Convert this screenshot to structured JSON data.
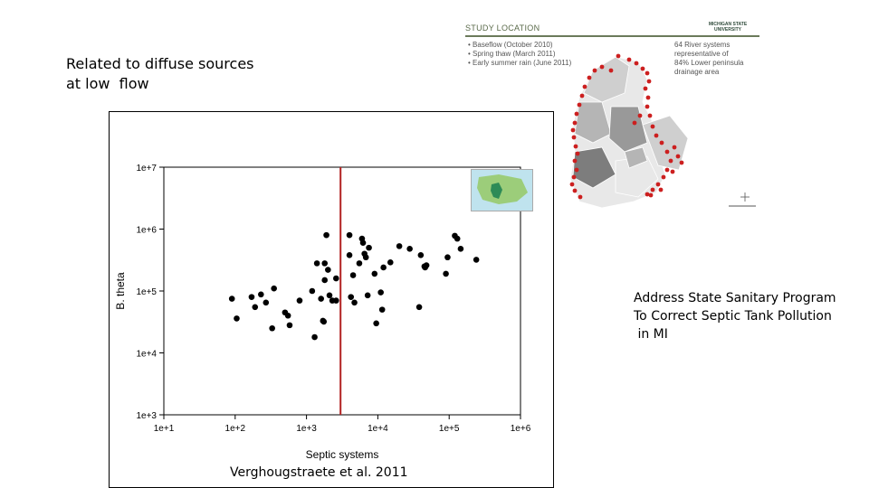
{
  "left_note": {
    "line1": "Related to diffuse sources",
    "line2": "at low  flow"
  },
  "right_note": {
    "line1": "Address State Sanitary Program",
    "line2": "To Correct Septic Tank Pollution",
    "line3": " in MI"
  },
  "citation": "Verghougstraete et al. 2011",
  "study_map": {
    "header": "STUDY LOCATION",
    "brand_line1": "MICHIGAN STATE",
    "brand_line2": "UNIVERSITY",
    "bullets": [
      "Baseflow (October 2010)",
      "Spring thaw (March 2011)",
      "Early summer rain (June 2011)"
    ],
    "side_line1": "64 River systems",
    "side_line2": "representative of",
    "side_line3": "84% Lower peninsula",
    "side_line4": "drainage area",
    "site_color": "#cc1f1f",
    "watershed_colors": [
      "#e8e8e8",
      "#cfcfcf",
      "#b5b5b5",
      "#999999",
      "#7d7d7d"
    ],
    "inset_colors": {
      "water": "#bfe3ee",
      "land": "#9ccd7a",
      "michigan": "#2e8b57"
    }
  },
  "chart_data": {
    "type": "scatter",
    "xlabel": "Septic systems",
    "ylabel": "B. theta",
    "x_scale": "log",
    "y_scale": "log",
    "xlim": [
      10,
      1000000
    ],
    "ylim": [
      1000,
      10000000
    ],
    "x_ticks": [
      "1e+1",
      "1e+2",
      "1e+3",
      "1e+4",
      "1e+5",
      "1e+6"
    ],
    "y_ticks": [
      "1e+3",
      "1e+4",
      "1e+5",
      "1e+6",
      "1e+7"
    ],
    "grid": false,
    "threshold_line": {
      "x": 3000,
      "color": "#b22222"
    },
    "point_color": "#000000",
    "points": [
      {
        "x": 90,
        "y": 75000
      },
      {
        "x": 105,
        "y": 36000
      },
      {
        "x": 170,
        "y": 80000
      },
      {
        "x": 190,
        "y": 55000
      },
      {
        "x": 230,
        "y": 88000
      },
      {
        "x": 270,
        "y": 65000
      },
      {
        "x": 330,
        "y": 25000
      },
      {
        "x": 350,
        "y": 110000
      },
      {
        "x": 500,
        "y": 45000
      },
      {
        "x": 550,
        "y": 40000
      },
      {
        "x": 580,
        "y": 28000
      },
      {
        "x": 800,
        "y": 70000
      },
      {
        "x": 1200,
        "y": 100000
      },
      {
        "x": 1300,
        "y": 18000
      },
      {
        "x": 1400,
        "y": 280000
      },
      {
        "x": 1600,
        "y": 75000
      },
      {
        "x": 1700,
        "y": 33000
      },
      {
        "x": 1750,
        "y": 32000
      },
      {
        "x": 1800,
        "y": 280000
      },
      {
        "x": 1800,
        "y": 150000
      },
      {
        "x": 1900,
        "y": 800000
      },
      {
        "x": 2000,
        "y": 220000
      },
      {
        "x": 2100,
        "y": 85000
      },
      {
        "x": 2300,
        "y": 70000
      },
      {
        "x": 2600,
        "y": 160000
      },
      {
        "x": 2600,
        "y": 70000
      },
      {
        "x": 4000,
        "y": 800000
      },
      {
        "x": 4000,
        "y": 380000
      },
      {
        "x": 4200,
        "y": 80000
      },
      {
        "x": 4500,
        "y": 180000
      },
      {
        "x": 4700,
        "y": 65000
      },
      {
        "x": 5500,
        "y": 280000
      },
      {
        "x": 6000,
        "y": 700000
      },
      {
        "x": 6200,
        "y": 600000
      },
      {
        "x": 6500,
        "y": 400000
      },
      {
        "x": 6800,
        "y": 350000
      },
      {
        "x": 7200,
        "y": 85000
      },
      {
        "x": 7500,
        "y": 500000
      },
      {
        "x": 9000,
        "y": 190000
      },
      {
        "x": 9500,
        "y": 30000
      },
      {
        "x": 11000,
        "y": 95000
      },
      {
        "x": 11500,
        "y": 50000
      },
      {
        "x": 12000,
        "y": 240000
      },
      {
        "x": 15000,
        "y": 290000
      },
      {
        "x": 20000,
        "y": 530000
      },
      {
        "x": 28000,
        "y": 480000
      },
      {
        "x": 38000,
        "y": 55000
      },
      {
        "x": 40000,
        "y": 380000
      },
      {
        "x": 45000,
        "y": 250000
      },
      {
        "x": 46000,
        "y": 240000
      },
      {
        "x": 48000,
        "y": 260000
      },
      {
        "x": 90000,
        "y": 190000
      },
      {
        "x": 95000,
        "y": 350000
      },
      {
        "x": 120000,
        "y": 780000
      },
      {
        "x": 130000,
        "y": 700000
      },
      {
        "x": 145000,
        "y": 480000
      },
      {
        "x": 240000,
        "y": 320000
      }
    ]
  }
}
